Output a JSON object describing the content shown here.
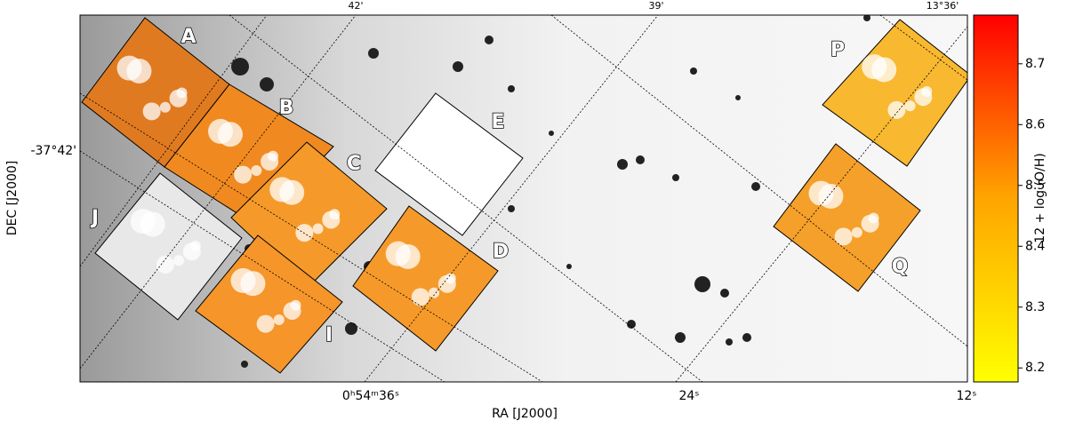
{
  "chart_data": {
    "type": "image",
    "xlabel": "RA [J2000]",
    "ylabel": "DEC [J2000]",
    "xtick_labels": [
      "0ʰ54ᵐ36ˢ",
      "24ˢ",
      "12ˢ"
    ],
    "ytick_labels": [
      "-37°42'"
    ],
    "top_tick_labels": [
      "42'",
      "39'",
      "13°36'"
    ],
    "regions": [
      "A",
      "B",
      "C",
      "D",
      "E",
      "I",
      "J",
      "P",
      "Q"
    ],
    "colorbar": {
      "label": "12 + log (O/H)",
      "lim": [
        8.177,
        8.78
      ],
      "ticks": [
        8.2,
        8.3,
        8.4,
        8.5,
        8.6,
        8.7
      ],
      "colors": [
        "#ffff00",
        "#ffa500",
        "#ff0000"
      ]
    }
  }
}
